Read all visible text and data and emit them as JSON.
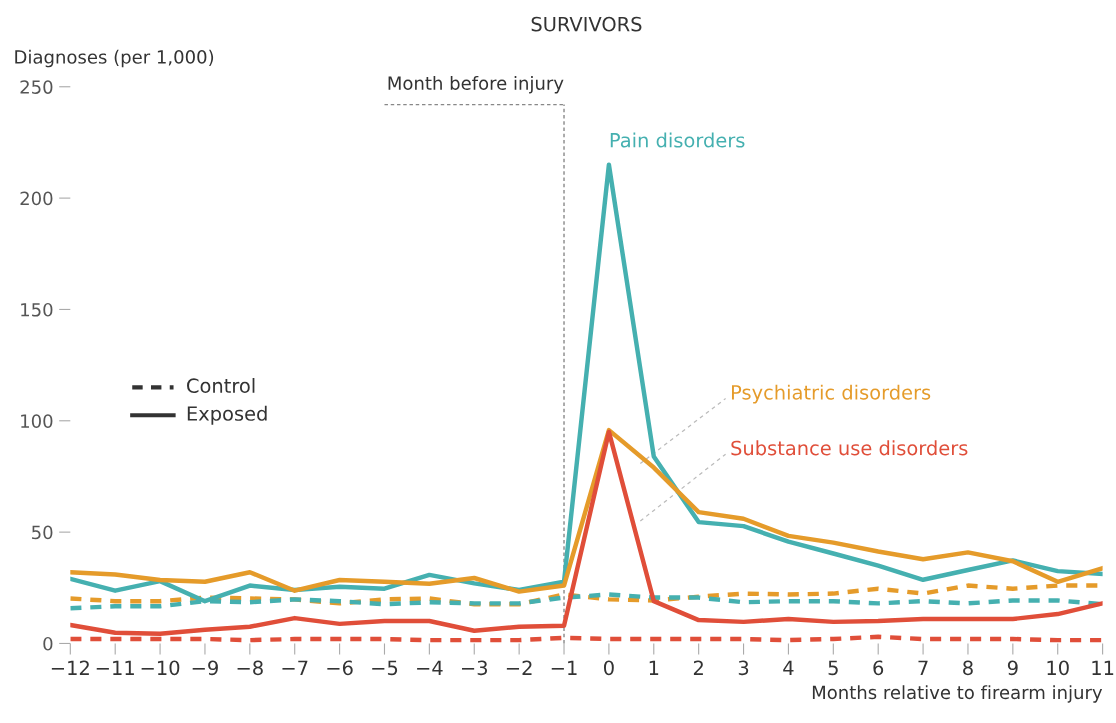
{
  "chart_data": {
    "type": "line",
    "title": "SURVIVORS",
    "ylabel": "Diagnoses (per 1,000)",
    "xlabel": "Months relative to firearm injury",
    "x": [
      -12,
      -11,
      -10,
      -9,
      -8,
      -7,
      -6,
      -5,
      -4,
      -3,
      -2,
      -1,
      0,
      1,
      2,
      3,
      4,
      5,
      6,
      7,
      8,
      9,
      10,
      11
    ],
    "series": [
      {
        "color": "#e59b2a",
        "line_style": "dashed",
        "values": [
          20.2,
          19,
          19,
          20.6,
          20.2,
          19.8,
          18,
          19.8,
          20.2,
          17.6,
          17.6,
          22,
          19.8,
          19.3,
          21,
          22.4,
          22,
          22.4,
          24.6,
          22.4,
          26,
          24.6,
          26,
          26
        ]
      },
      {
        "color": "#45b0b0",
        "line_style": "dashed",
        "values": [
          15.8,
          16.7,
          16.7,
          19,
          18.5,
          19.8,
          19,
          17.6,
          18.5,
          18,
          18,
          20.6,
          22,
          20.6,
          20.6,
          18.5,
          19,
          19,
          18,
          19,
          18,
          19.3,
          19.3,
          17.6
        ]
      },
      {
        "color": "#e04e39",
        "line_style": "dashed",
        "values": [
          2,
          2,
          2,
          2,
          1.5,
          2,
          2,
          2,
          1.5,
          1.5,
          1.5,
          2.5,
          2,
          2,
          2,
          2,
          1.5,
          2,
          3,
          2,
          2,
          2,
          1.5,
          1.5
        ]
      },
      {
        "name": "Pain disorders",
        "color": "#45b0b0",
        "line_style": "solid",
        "values": [
          29,
          23.7,
          28,
          19,
          26,
          24,
          25.5,
          24.6,
          30.8,
          27,
          24,
          27.7,
          215,
          84,
          54.5,
          52.7,
          45.7,
          40.4,
          35,
          28.6,
          33,
          37.3,
          32.5,
          31.2
        ]
      },
      {
        "name": "Psychiatric disorders",
        "color": "#e59b2a",
        "line_style": "solid",
        "values": [
          32,
          31,
          28.5,
          27.7,
          32,
          23.7,
          28.5,
          27.7,
          26.8,
          29.4,
          23.3,
          26,
          95.8,
          79,
          59,
          56,
          48.3,
          45.3,
          41.3,
          37.8,
          40.9,
          36.9,
          27.7,
          33.8
        ]
      },
      {
        "name": "Substance use disorders",
        "color": "#e04e39",
        "line_style": "solid",
        "values": [
          8.3,
          4.8,
          4.4,
          6.2,
          7.5,
          11.4,
          8.8,
          10.1,
          10.1,
          5.7,
          7.5,
          8,
          95,
          19,
          10.5,
          9.7,
          11,
          9.7,
          10.1,
          11,
          11,
          11,
          13.2,
          18
        ]
      }
    ],
    "annotations": [
      "Control",
      "Exposed"
    ],
    "ref_lines": [
      {
        "axis": "x",
        "value": -1,
        "label": "Month before injury",
        "color": "#888888",
        "line_style": "dashed"
      }
    ],
    "xlim": [
      -12,
      11
    ],
    "xticks": [
      {
        "value": -12,
        "label": "−12"
      },
      {
        "value": -11,
        "label": "−11"
      },
      {
        "value": -10,
        "label": "−10"
      },
      {
        "value": -9,
        "label": "−9"
      },
      {
        "value": -8,
        "label": "−8"
      },
      {
        "value": -7,
        "label": "−7"
      },
      {
        "value": -6,
        "label": "−6"
      },
      {
        "value": -5,
        "label": "−5"
      },
      {
        "value": -4,
        "label": "−4"
      },
      {
        "value": -3,
        "label": "−3"
      },
      {
        "value": -2,
        "label": "−2"
      },
      {
        "value": -1,
        "label": "−1"
      },
      0,
      1,
      2,
      3,
      4,
      5,
      6,
      7,
      8,
      9,
      10,
      11
    ],
    "ylim": [
      0,
      250
    ],
    "yticks": [
      0,
      50,
      100,
      150,
      200,
      250
    ],
    "grid": false
  }
}
